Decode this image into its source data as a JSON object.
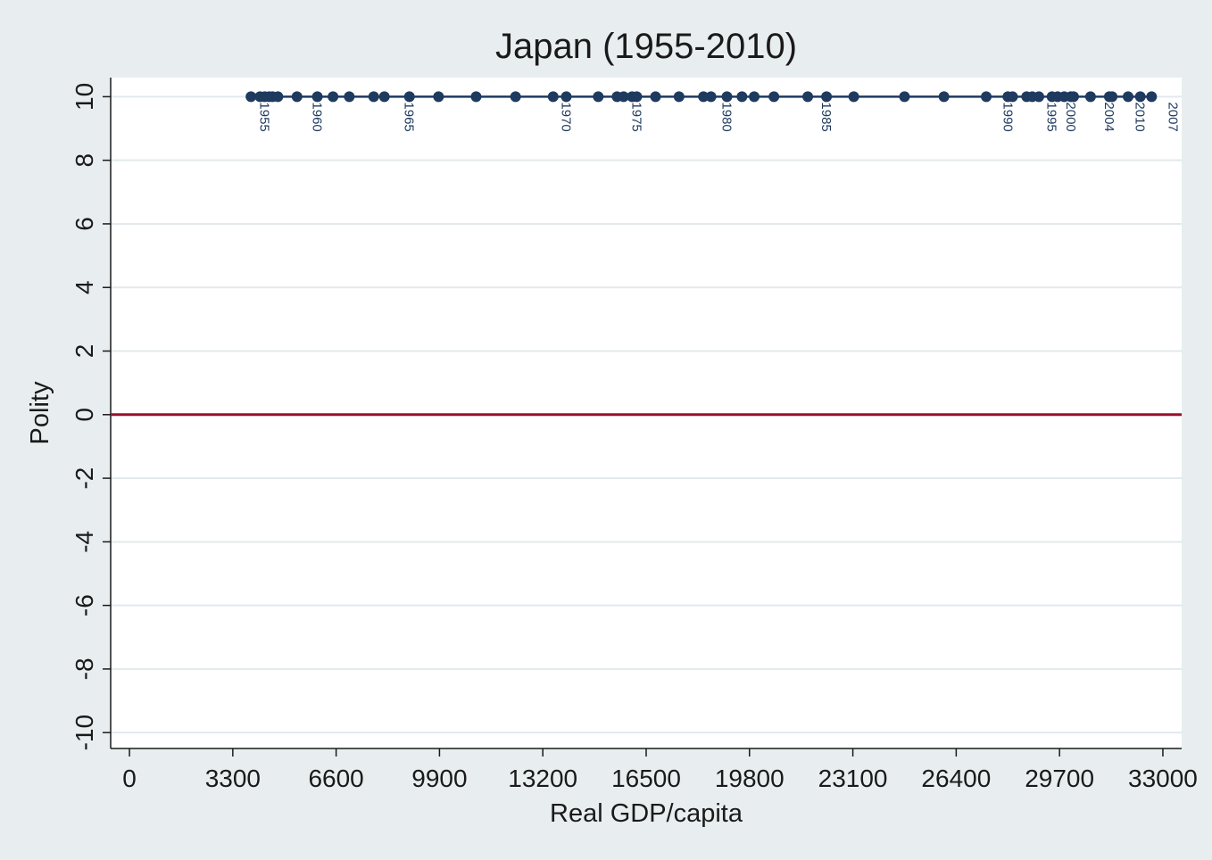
{
  "chart_data": {
    "type": "line",
    "title": "Japan (1955-2010)",
    "xlabel": "Real GDP/capita",
    "ylabel": "Polity",
    "xlim": [
      -600,
      33600
    ],
    "ylim": [
      -10.5,
      10.6
    ],
    "xticks": [
      0,
      3300,
      6600,
      9900,
      13200,
      16500,
      19800,
      23100,
      26400,
      29700,
      33000
    ],
    "yticks": [
      -10,
      -8,
      -6,
      -4,
      -2,
      0,
      2,
      4,
      6,
      8,
      10
    ],
    "grid": true,
    "reference_line": {
      "y": 0,
      "color": "#990e2e"
    },
    "colors": {
      "series": "#1e3a5f",
      "grid": "#e3e9ec",
      "reference": "#990e2e",
      "plot_bg": "#ffffff",
      "page_bg": "#e8eef0"
    },
    "series": [
      {
        "x": [
          3880,
          4170,
          4320,
          4460,
          4570,
          4740,
          5350,
          6000,
          6500,
          7020,
          7800,
          8140,
          8940,
          9870,
          11070,
          12330,
          13530,
          13950,
          14970,
          15570,
          15780,
          16050,
          16200,
          16800,
          17550,
          18330,
          18570,
          19080,
          19560,
          19950,
          20580,
          21660,
          22260,
          23130,
          24750,
          26010,
          27360,
          28050,
          28200,
          28650,
          28830,
          29040,
          29460,
          29640,
          29850,
          30060,
          30150,
          30690,
          31290,
          31380,
          31890,
          32280,
          32640
        ],
        "y": [
          10,
          10,
          10,
          10,
          10,
          10,
          10,
          10,
          10,
          10,
          10,
          10,
          10,
          10,
          10,
          10,
          10,
          10,
          10,
          10,
          10,
          10,
          10,
          10,
          10,
          10,
          10,
          10,
          10,
          10,
          10,
          10,
          10,
          10,
          10,
          10,
          10,
          10,
          10,
          10,
          10,
          10,
          10,
          10,
          10,
          10,
          10,
          10,
          10,
          10,
          10,
          10,
          10
        ]
      }
    ],
    "point_labels": [
      {
        "text": "1955",
        "x": 4320
      },
      {
        "text": "1960",
        "x": 6000
      },
      {
        "text": "1965",
        "x": 8940
      },
      {
        "text": "1970",
        "x": 13950
      },
      {
        "text": "1975",
        "x": 16200
      },
      {
        "text": "1980",
        "x": 19080
      },
      {
        "text": "1985",
        "x": 22260
      },
      {
        "text": "1990",
        "x": 28050
      },
      {
        "text": "1995",
        "x": 29460
      },
      {
        "text": "2000",
        "x": 30060
      },
      {
        "text": "2004",
        "x": 31290
      },
      {
        "text": "2010",
        "x": 32280
      },
      {
        "text": "2007",
        "x": 33330
      }
    ]
  }
}
